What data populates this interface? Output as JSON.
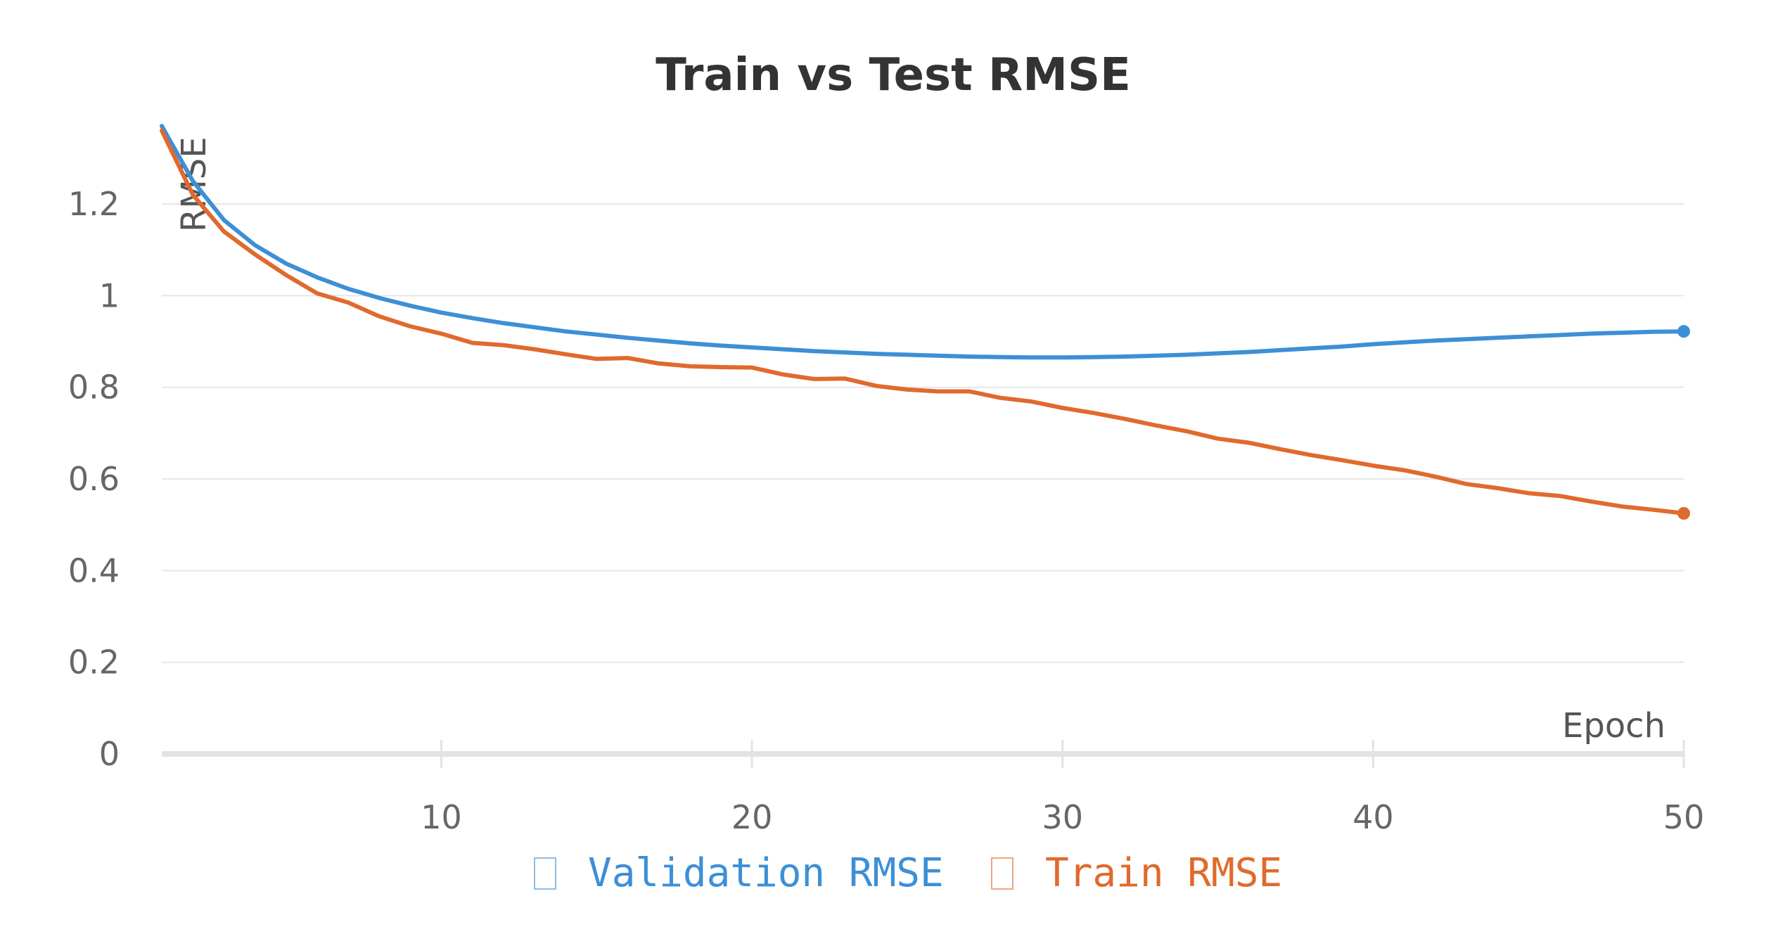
{
  "chart_data": {
    "type": "line",
    "title": "Train vs Test RMSE",
    "xlabel": "Epoch",
    "ylabel": "RMSE",
    "xlim": [
      1,
      50
    ],
    "ylim": [
      0,
      1.4
    ],
    "x_ticks": [
      10,
      20,
      30,
      40,
      50
    ],
    "y_ticks": [
      0,
      0.2,
      0.4,
      0.6,
      0.8,
      1,
      1.2
    ],
    "y_tick_labels": [
      "0",
      "0.2",
      "0.4",
      "0.6",
      "0.8",
      "1",
      "1.2"
    ],
    "grid": "horizontal",
    "legend_position": "bottom",
    "x": [
      1,
      2,
      3,
      4,
      5,
      6,
      7,
      8,
      9,
      10,
      11,
      12,
      13,
      14,
      15,
      16,
      17,
      18,
      19,
      20,
      21,
      22,
      23,
      24,
      25,
      26,
      27,
      28,
      29,
      30,
      31,
      32,
      33,
      34,
      35,
      36,
      37,
      38,
      39,
      40,
      41,
      42,
      43,
      44,
      45,
      46,
      47,
      48,
      49,
      50
    ],
    "series": [
      {
        "name": "Validation RMSE",
        "color": "#3d8fd6",
        "values": [
          1.37,
          1.25,
          1.165,
          1.11,
          1.07,
          1.04,
          1.015,
          0.995,
          0.978,
          0.963,
          0.951,
          0.94,
          0.931,
          0.922,
          0.915,
          0.908,
          0.902,
          0.896,
          0.891,
          0.887,
          0.883,
          0.879,
          0.876,
          0.873,
          0.871,
          0.869,
          0.867,
          0.866,
          0.865,
          0.865,
          0.866,
          0.867,
          0.869,
          0.871,
          0.874,
          0.877,
          0.881,
          0.885,
          0.889,
          0.894,
          0.898,
          0.902,
          0.905,
          0.908,
          0.911,
          0.914,
          0.917,
          0.919,
          0.921,
          0.922
        ]
      },
      {
        "name": "Train RMSE",
        "color": "#e06a2c",
        "values": [
          1.36,
          1.22,
          1.14,
          1.09,
          1.045,
          1.005,
          0.985,
          0.955,
          0.933,
          0.917,
          0.897,
          0.892,
          0.883,
          0.872,
          0.862,
          0.864,
          0.852,
          0.846,
          0.844,
          0.843,
          0.828,
          0.818,
          0.819,
          0.803,
          0.795,
          0.791,
          0.791,
          0.777,
          0.769,
          0.755,
          0.744,
          0.731,
          0.717,
          0.704,
          0.688,
          0.679,
          0.665,
          0.652,
          0.641,
          0.629,
          0.619,
          0.605,
          0.589,
          0.58,
          0.569,
          0.563,
          0.551,
          0.54,
          0.533,
          0.525
        ]
      }
    ]
  }
}
